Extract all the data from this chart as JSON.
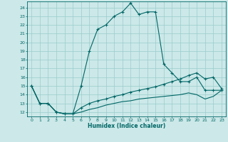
{
  "xlabel": "Humidex (Indice chaleur)",
  "bg_color": "#cce8e8",
  "grid_color": "#99cccc",
  "line_color": "#006666",
  "xlim": [
    -0.5,
    23.5
  ],
  "ylim": [
    11.5,
    24.7
  ],
  "xticks": [
    0,
    1,
    2,
    3,
    4,
    5,
    6,
    7,
    8,
    9,
    10,
    11,
    12,
    13,
    14,
    15,
    16,
    17,
    18,
    19,
    20,
    21,
    22,
    23
  ],
  "yticks": [
    12,
    13,
    14,
    15,
    16,
    17,
    18,
    19,
    20,
    21,
    22,
    23,
    24
  ],
  "line1_x": [
    0,
    1,
    2,
    3,
    4,
    5,
    6,
    7,
    8,
    9,
    10,
    11,
    12,
    13,
    14,
    15,
    16,
    17,
    18,
    19,
    20,
    21,
    22,
    23
  ],
  "line1_y": [
    15,
    13,
    13,
    12,
    11.8,
    11.8,
    15,
    19,
    21.5,
    22,
    23,
    23.5,
    24.5,
    23.2,
    23.5,
    23.5,
    17.5,
    16.5,
    15.5,
    15.5,
    16,
    14.5,
    14.5,
    14.5
  ],
  "line2_x": [
    0,
    1,
    2,
    3,
    4,
    5,
    6,
    7,
    8,
    9,
    10,
    11,
    12,
    13,
    14,
    15,
    16,
    17,
    18,
    19,
    20,
    21,
    22,
    23
  ],
  "line2_y": [
    15,
    13,
    13,
    12,
    11.8,
    11.8,
    12.5,
    13.0,
    13.3,
    13.5,
    13.8,
    14.0,
    14.3,
    14.5,
    14.7,
    14.9,
    15.2,
    15.5,
    15.8,
    16.2,
    16.5,
    15.8,
    16.0,
    14.7
  ],
  "line3_x": [
    0,
    1,
    2,
    3,
    4,
    5,
    6,
    7,
    8,
    9,
    10,
    11,
    12,
    13,
    14,
    15,
    16,
    17,
    18,
    19,
    20,
    21,
    22,
    23
  ],
  "line3_y": [
    15,
    13,
    13,
    12,
    11.8,
    11.8,
    12.0,
    12.3,
    12.5,
    12.8,
    13.0,
    13.2,
    13.3,
    13.5,
    13.6,
    13.7,
    13.8,
    13.9,
    14.0,
    14.2,
    14.0,
    13.5,
    13.8,
    14.5
  ]
}
